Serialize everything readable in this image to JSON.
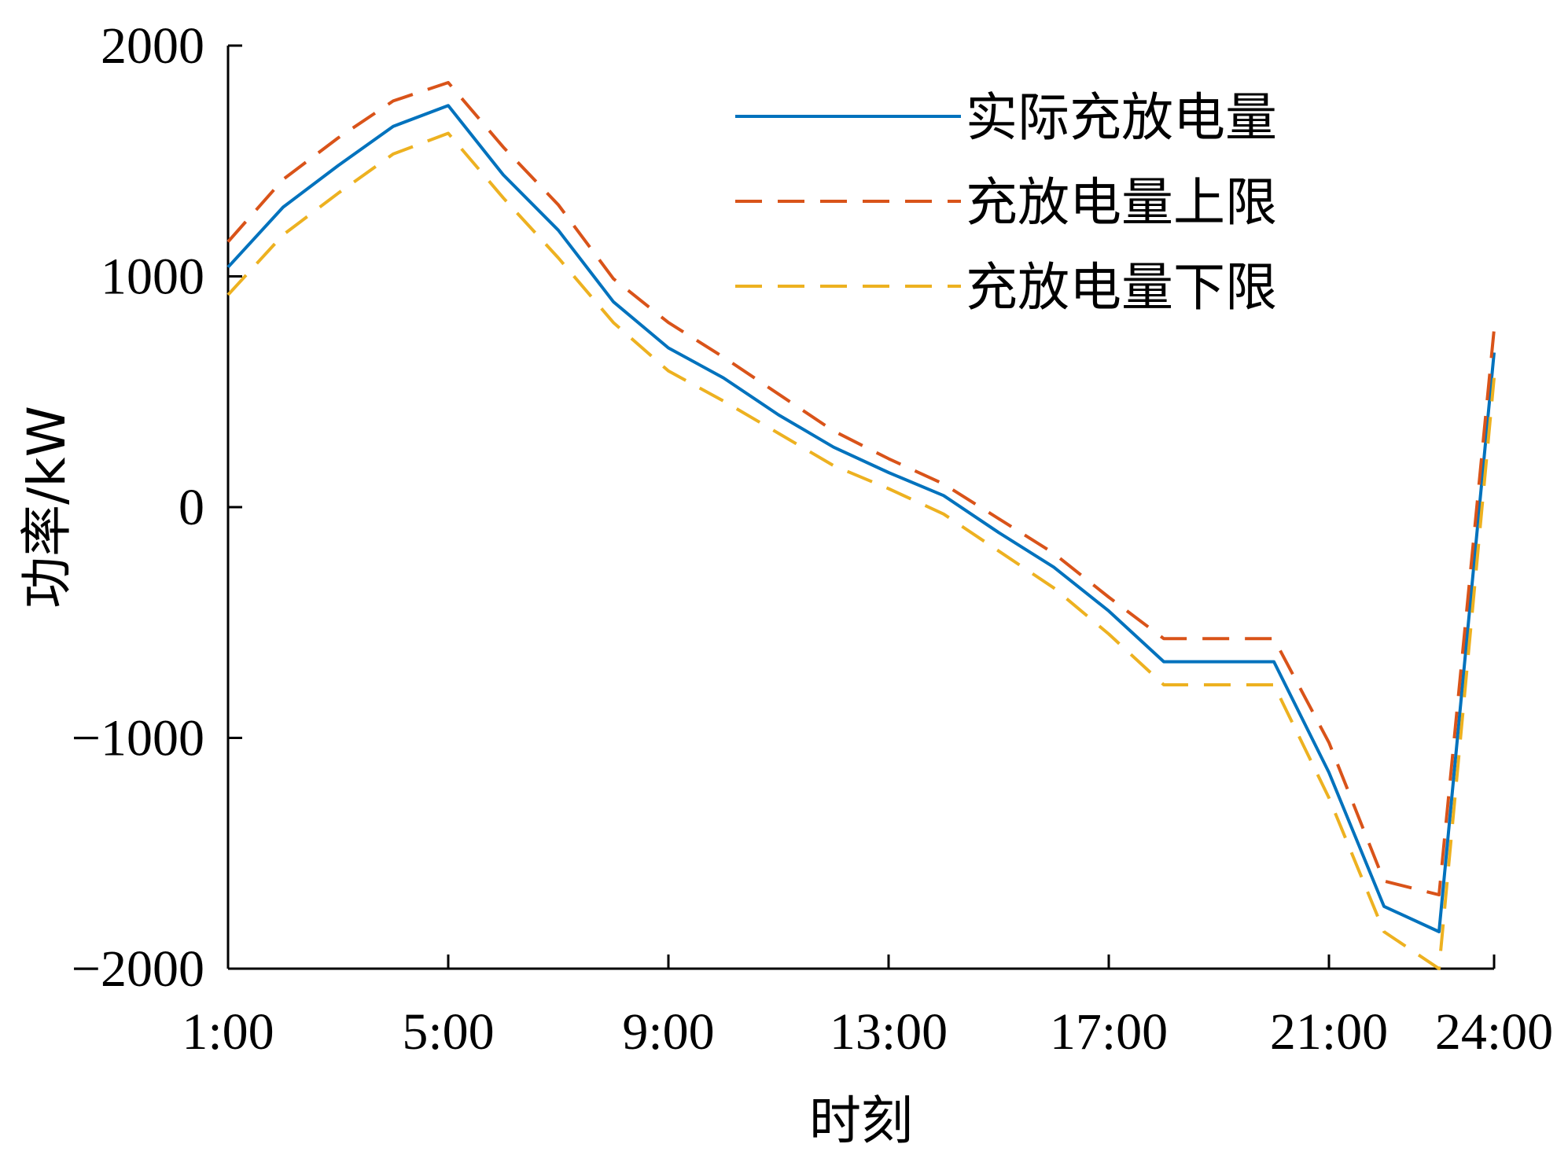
{
  "chart_data": {
    "type": "line",
    "xlabel": "时刻",
    "ylabel": "功率/kW",
    "ylim": [
      -2000,
      2000
    ],
    "xlim": [
      1,
      24
    ],
    "yticks": [
      2000,
      1000,
      0,
      -1000,
      -2000
    ],
    "ytick_labels": [
      "2000",
      "1000",
      "0",
      "−1000",
      "−2000"
    ],
    "xticks": [
      1,
      5,
      9,
      13,
      17,
      21,
      24
    ],
    "xtick_labels": [
      "1:00",
      "5:00",
      "9:00",
      "13:00",
      "17:00",
      "21:00",
      "24:00"
    ],
    "x": [
      1,
      2,
      3,
      4,
      5,
      6,
      7,
      8,
      9,
      10,
      11,
      12,
      13,
      14,
      15,
      16,
      17,
      18,
      19,
      20,
      21,
      22,
      23,
      24
    ],
    "grid": false,
    "legend_position": "top-right",
    "series": [
      {
        "name": "实际充放电量",
        "color": "#0072BD",
        "style": "solid",
        "values": [
          1040,
          1300,
          1480,
          1650,
          1740,
          1440,
          1200,
          890,
          690,
          560,
          400,
          260,
          150,
          50,
          -110,
          -260,
          -450,
          -670,
          -670,
          -670,
          -1150,
          -1730,
          -1840,
          670
        ]
      },
      {
        "name": "充放电量上限",
        "color": "#D95319",
        "style": "dashed",
        "values": [
          1150,
          1420,
          1600,
          1760,
          1840,
          1560,
          1310,
          990,
          800,
          650,
          490,
          330,
          210,
          100,
          -50,
          -200,
          -390,
          -570,
          -570,
          -570,
          -1020,
          -1620,
          -1680,
          770
        ]
      },
      {
        "name": "充放电量下限",
        "color": "#EDB120",
        "style": "dashed",
        "values": [
          920,
          1180,
          1360,
          1530,
          1620,
          1340,
          1080,
          800,
          590,
          460,
          320,
          180,
          80,
          -30,
          -190,
          -350,
          -550,
          -770,
          -770,
          -770,
          -1260,
          -1840,
          -2000,
          560
        ]
      }
    ]
  }
}
